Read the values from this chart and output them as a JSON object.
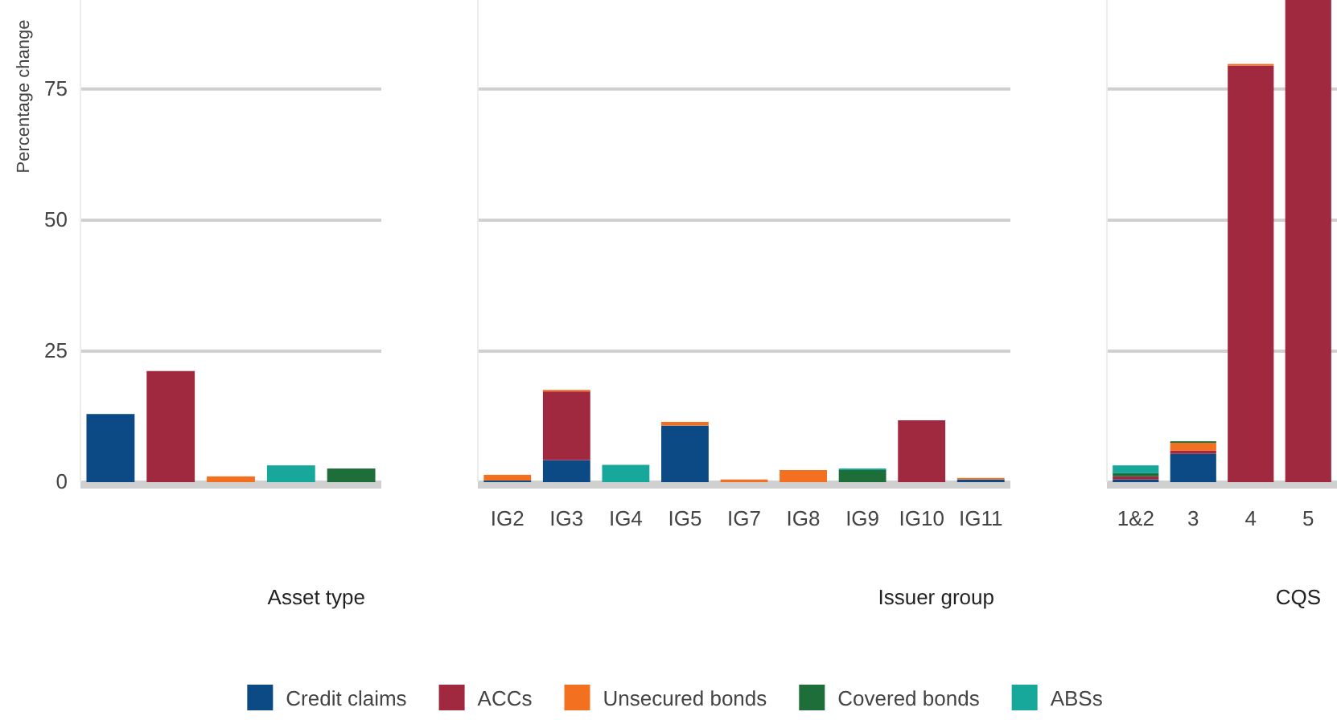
{
  "chart_data": [
    {
      "type": "bar",
      "stacked": true,
      "ylabel": "Percentage change",
      "xlabel": "Asset type",
      "categories": [
        null,
        null,
        null,
        null,
        null
      ],
      "ylim": [
        0,
        92
      ],
      "yticks": [
        0,
        25,
        50,
        75
      ],
      "grid": "y",
      "tick_labels": "y",
      "legend": "bottom",
      "series": [
        {
          "name": "Credit claims",
          "color": "#0b4a85",
          "values": [
            13.0,
            null,
            null,
            null,
            null
          ]
        },
        {
          "name": "ACCs",
          "color": "#a0293f",
          "values": [
            null,
            21.2,
            null,
            null,
            null
          ]
        },
        {
          "name": "Unsecured bonds",
          "color": "#f37021",
          "values": [
            null,
            null,
            1.1,
            null,
            null
          ]
        },
        {
          "name": "Covered bonds",
          "color": "#1d6e39",
          "values": [
            null,
            null,
            null,
            null,
            2.6
          ]
        },
        {
          "name": "ABSs",
          "color": "#17a89b",
          "values": [
            null,
            null,
            null,
            3.2,
            null
          ]
        }
      ]
    },
    {
      "type": "bar",
      "stacked": true,
      "xlabel": "Issuer group",
      "categories": [
        "IG2",
        "IG3",
        "IG4",
        "IG5",
        "IG7",
        "IG8",
        "IG9",
        "IG10",
        "IG11"
      ],
      "ylim": [
        0,
        92
      ],
      "yticks": [
        0,
        25,
        50,
        75
      ],
      "grid": "y",
      "tick_labels": "x",
      "series": [
        {
          "color": "#0b4a85",
          "values": [
            0.3,
            4.2,
            null,
            10.8,
            null,
            null,
            null,
            null,
            0.5
          ]
        },
        {
          "color": "#a0293f",
          "values": [
            null,
            13.1,
            null,
            null,
            null,
            null,
            null,
            11.8,
            null
          ]
        },
        {
          "color": "#f37021",
          "values": [
            1.1,
            0.3,
            null,
            0.7,
            0.5,
            2.3,
            null,
            null,
            0.3
          ]
        },
        {
          "color": "#1d6e39",
          "values": [
            null,
            null,
            null,
            null,
            null,
            null,
            2.3,
            null,
            null
          ]
        },
        {
          "color": "#17a89b",
          "values": [
            null,
            null,
            3.3,
            null,
            null,
            null,
            0.3,
            null,
            null
          ]
        }
      ]
    },
    {
      "type": "bar",
      "stacked": true,
      "xlabel": "CQS",
      "categories": [
        "1&2",
        "3",
        "4",
        "5"
      ],
      "ylim": [
        0,
        92
      ],
      "yticks": [
        0,
        25,
        50,
        75
      ],
      "grid": "y",
      "tick_labels": "x",
      "series": [
        {
          "color": "#0b4a85",
          "values": [
            0.5,
            5.4,
            null,
            null
          ]
        },
        {
          "color": "#a0293f",
          "values": [
            0.6,
            0.6,
            79.5,
            92
          ]
        },
        {
          "color": "#f37021",
          "values": [
            null,
            1.5,
            0.3,
            null
          ]
        },
        {
          "color": "#1d6e39",
          "values": [
            0.6,
            0.3,
            null,
            null
          ]
        },
        {
          "color": "#17a89b",
          "values": [
            1.5,
            null,
            null,
            null
          ]
        }
      ]
    }
  ]
}
